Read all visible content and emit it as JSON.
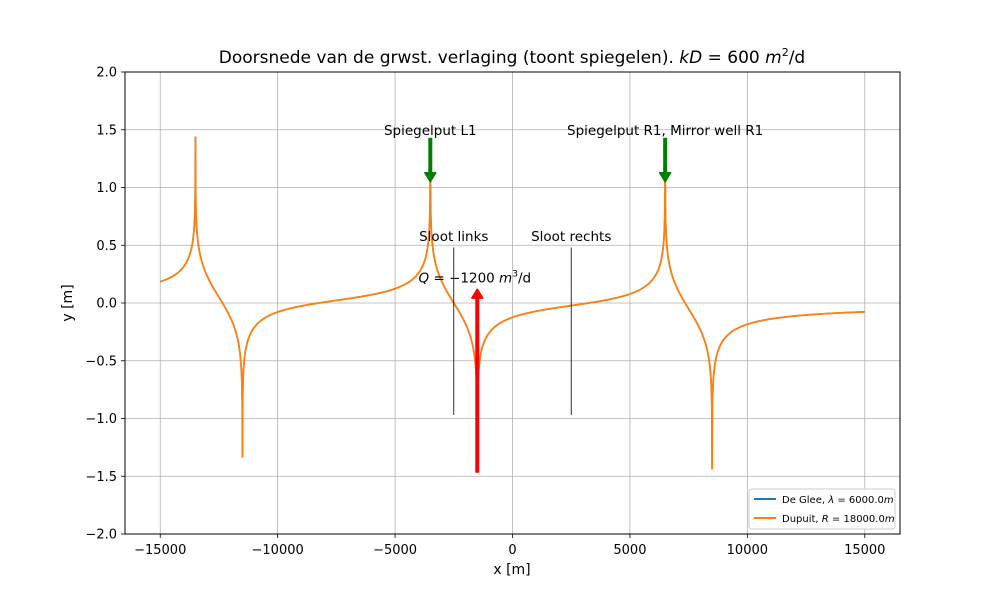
{
  "chart_data": {
    "type": "line",
    "title_text": "Doorsnede van de grwst. verlaging (toont spiegelen).",
    "title_math": {
      "var": "kD",
      "eq": " = 600 ",
      "unit": "m",
      "sup": "2",
      "tail": "/d"
    },
    "xlabel": "x [m]",
    "ylabel": "y [m]",
    "xlim": [
      -16500,
      16500
    ],
    "ylim": [
      -2.0,
      2.0
    ],
    "grid": true,
    "xticks": [
      -15000,
      -10000,
      -5000,
      0,
      5000,
      10000,
      15000
    ],
    "xtick_labels": [
      "−15000",
      "−10000",
      "−5000",
      "0",
      "5000",
      "10000",
      "15000"
    ],
    "yticks": [
      -2.0,
      -1.5,
      -1.0,
      -0.5,
      0.0,
      0.5,
      1.0,
      1.5,
      2.0
    ],
    "ytick_labels": [
      "−2.0",
      "−1.5",
      "−1.0",
      "−0.5",
      "0.0",
      "0.5",
      "1.0",
      "1.5",
      "2.0"
    ],
    "legend_position": "lower right",
    "series": [
      {
        "name": "De Glee, λ = 6000.0m",
        "name_parts": {
          "label": "De Glee, ",
          "sym": "λ",
          "rest": " = 6000.0",
          "unit": "m"
        },
        "color": "#1f77b4"
      },
      {
        "name": "Dupuit,  R = 18000.0m",
        "name_parts": {
          "label": "Dupuit,  ",
          "sym": "R",
          "rest": " = 18000.0",
          "unit": "m"
        },
        "color": "#ff7f0e"
      }
    ],
    "curve_x_range": [
      -15000,
      15000
    ],
    "extraction_wells_x": [
      -1500,
      -11500,
      8500
    ],
    "injection_wells_x": [
      -3500,
      -13500,
      6500
    ],
    "sample_points": [
      {
        "x": -15000,
        "y": 0.2
      },
      {
        "x": -14000,
        "y": 0.4
      },
      {
        "x": -12500,
        "y": -0.4
      },
      {
        "x": -10000,
        "y": -0.2
      },
      {
        "x": -7500,
        "y": 0.02
      },
      {
        "x": -5000,
        "y": 0.2
      },
      {
        "x": -2500,
        "y": 0.0
      },
      {
        "x": 0,
        "y": -0.22
      },
      {
        "x": 2500,
        "y": 0.0
      },
      {
        "x": 5000,
        "y": 0.2
      },
      {
        "x": 7500,
        "y": -0.4
      },
      {
        "x": 10000,
        "y": -0.2
      },
      {
        "x": 12500,
        "y": 0.0
      },
      {
        "x": 15000,
        "y": 0.2
      }
    ],
    "annotations": {
      "mirror_left": {
        "text": "Spiegelput L1",
        "x": -3500,
        "y": 1.5
      },
      "mirror_right": {
        "text": "Spiegelput R1, Mirror well R1",
        "x": 6500,
        "y": 1.5
      },
      "ditch_left": {
        "text": "Sloot links",
        "x": -2500,
        "y": 0.58
      },
      "ditch_right": {
        "text": "Sloot rechts",
        "x": 2500,
        "y": 0.58
      },
      "flow": {
        "prefix": "Q",
        "eq": " = −1200 ",
        "unit": "m",
        "sup": "3",
        "tail": "/d",
        "x": -4000,
        "y": 0.22
      }
    },
    "ditch_lines": [
      {
        "x": -2500,
        "y0": -0.97,
        "y1": 0.48
      },
      {
        "x": 2500,
        "y0": -0.97,
        "y1": 0.48
      }
    ],
    "arrows": [
      {
        "kind": "extraction",
        "x": -1500,
        "y_from": -1.47,
        "y_to": 0.12,
        "color": "#ff0000"
      },
      {
        "kind": "injection",
        "x": -3500,
        "y_from": 1.43,
        "y_to": 1.05,
        "color": "#008000"
      },
      {
        "kind": "injection",
        "x": 6500,
        "y_from": 1.43,
        "y_to": 1.05,
        "color": "#008000"
      }
    ]
  }
}
